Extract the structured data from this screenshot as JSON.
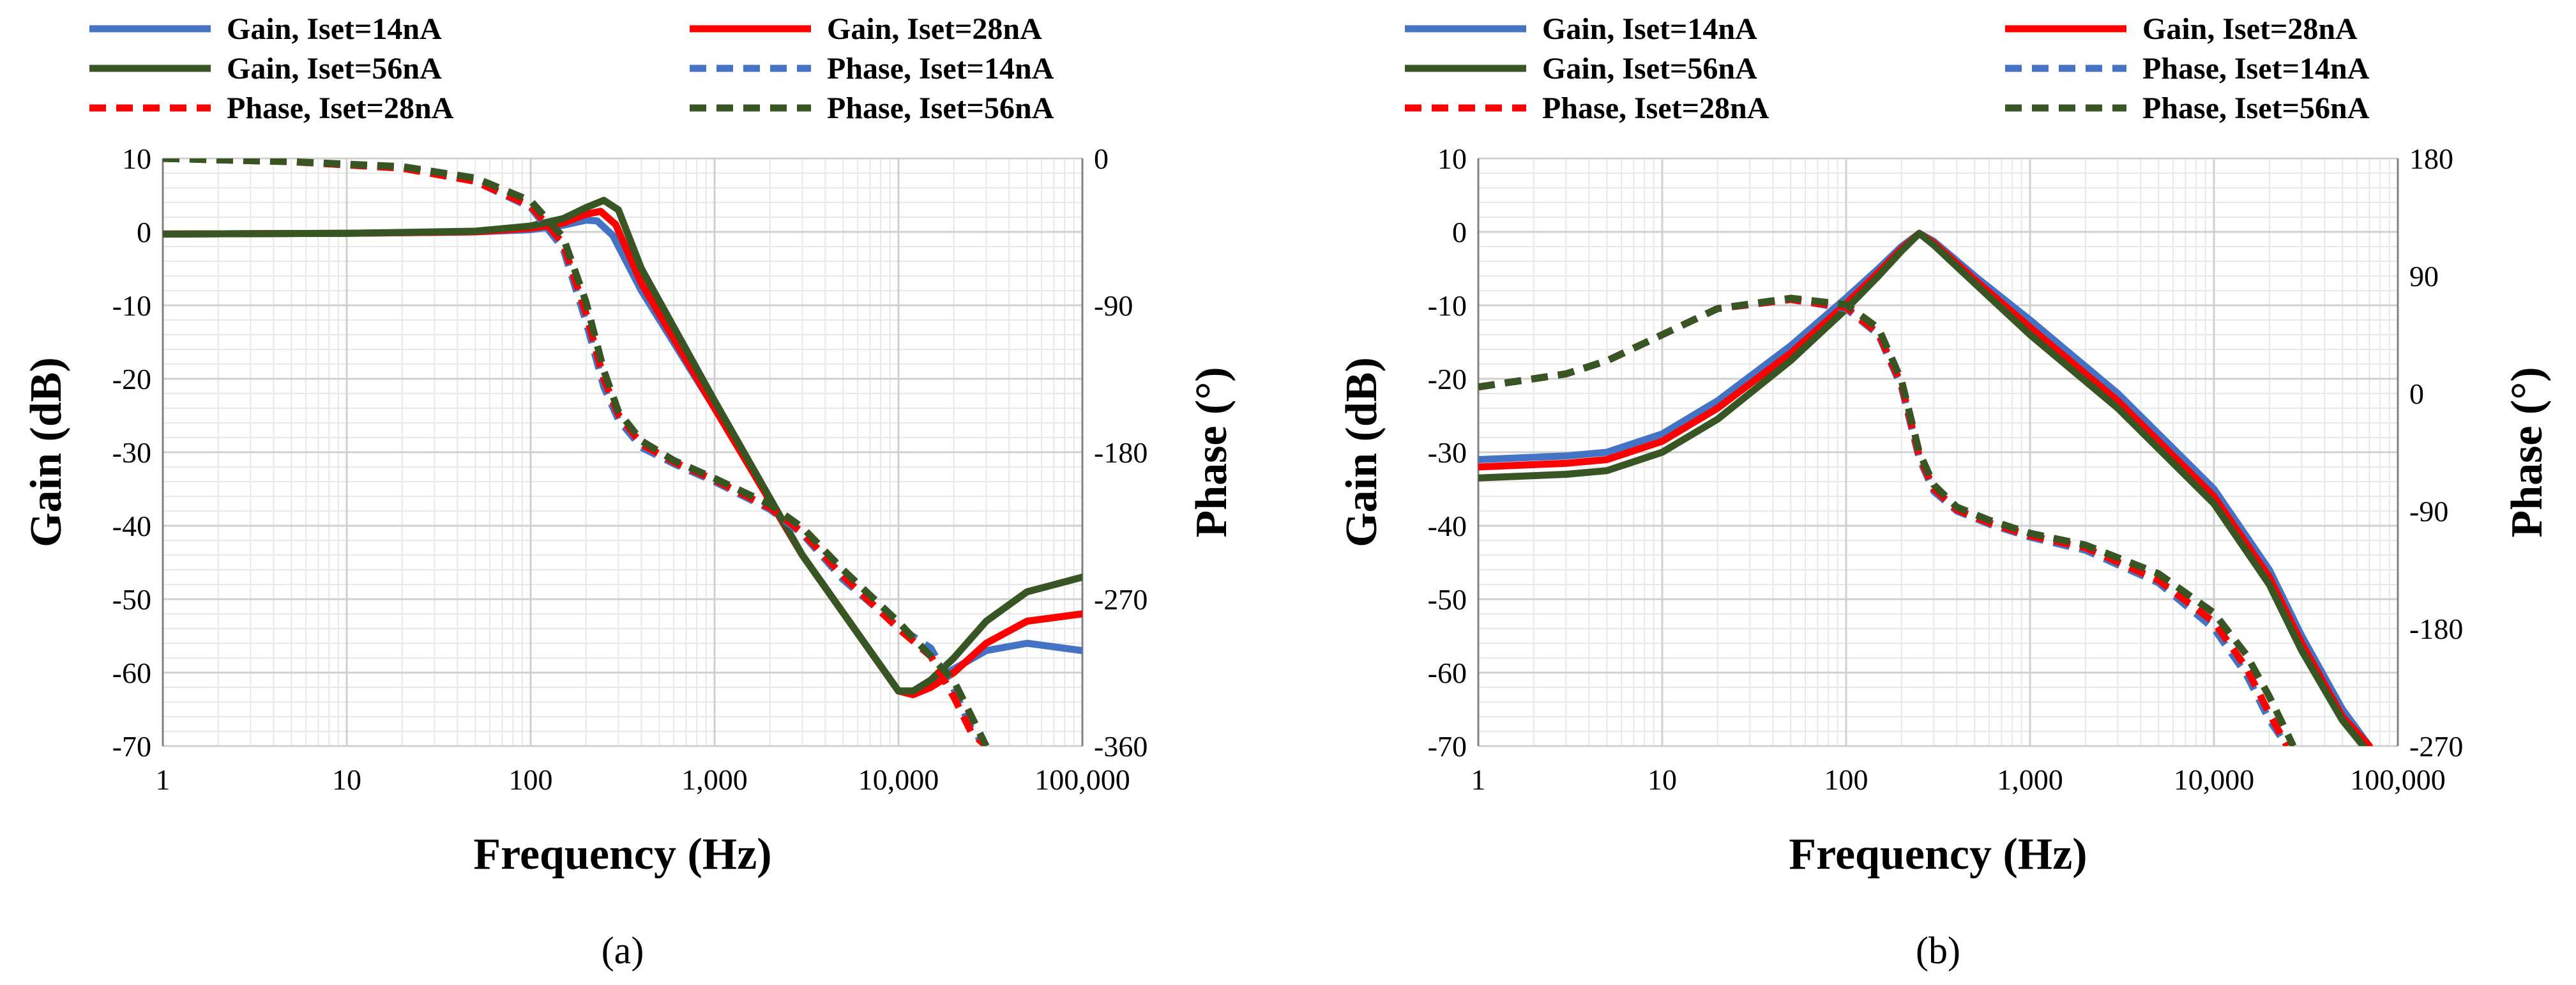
{
  "figure": {
    "caption_a": "(a)",
    "caption_b": "(b)"
  },
  "colors": {
    "blue": "#4472C4",
    "red": "#FF0000",
    "green": "#375623",
    "grid_major": "#D0D0D0",
    "grid_minor": "#E8E8E8"
  },
  "chart_data": [
    {
      "id": "a",
      "type": "line",
      "caption": "(a)",
      "xlabel": "Frequency (Hz)",
      "ylabel": "Gain (dB)",
      "y2label": "Phase (°)",
      "xscale": "log",
      "xlim": [
        1,
        100000
      ],
      "ylim": [
        -70,
        10
      ],
      "y2lim": [
        -360,
        0
      ],
      "xticks": [
        1,
        10,
        100,
        1000,
        10000,
        100000
      ],
      "xticklabels": [
        "1",
        "10",
        "100",
        "1,000",
        "10,000",
        "100,000"
      ],
      "yticks": [
        -70,
        -60,
        -50,
        -40,
        -30,
        -20,
        -10,
        0,
        10
      ],
      "yticklabels": [
        "-70",
        "-60",
        "-50",
        "-40",
        "-30",
        "-20",
        "-10",
        "0",
        "10"
      ],
      "y2ticks": [
        -360,
        -270,
        -180,
        -90,
        0
      ],
      "y2ticklabels": [
        "-360",
        "-270",
        "-180",
        "-90",
        "0"
      ],
      "legend_position": "top",
      "series": [
        {
          "name": "Gain, Iset=14nA",
          "axis": "left",
          "color": "#4472C4",
          "dash": "solid",
          "x": [
            1,
            10,
            50,
            100,
            150,
            200,
            230,
            280,
            400,
            1000,
            3000,
            10000,
            12000,
            15000,
            20000,
            30000,
            50000,
            100000
          ],
          "y": [
            -0.3,
            -0.2,
            0.0,
            0.3,
            0.9,
            1.6,
            1.5,
            -0.5,
            -8,
            -24,
            -44,
            -62.5,
            -62.5,
            -61.5,
            -59.5,
            -57,
            -56,
            -57
          ]
        },
        {
          "name": "Gain, Iset=28nA",
          "axis": "left",
          "color": "#FF0000",
          "dash": "solid",
          "x": [
            1,
            10,
            50,
            100,
            150,
            200,
            240,
            290,
            400,
            1000,
            3000,
            10000,
            12000,
            15000,
            20000,
            30000,
            50000,
            100000
          ],
          "y": [
            -0.3,
            -0.2,
            0.0,
            0.5,
            1.2,
            2.4,
            2.8,
            1.0,
            -7,
            -24,
            -44,
            -62.5,
            -63,
            -62,
            -60,
            -56,
            -53,
            -52
          ]
        },
        {
          "name": "Gain, Iset=56nA",
          "axis": "left",
          "color": "#375623",
          "dash": "solid",
          "x": [
            1,
            10,
            50,
            100,
            150,
            200,
            250,
            300,
            400,
            1000,
            3000,
            10000,
            12000,
            15000,
            20000,
            30000,
            50000,
            100000
          ],
          "y": [
            -0.3,
            -0.2,
            0.1,
            0.8,
            1.8,
            3.3,
            4.3,
            3.0,
            -5,
            -23,
            -44,
            -62.5,
            -62.5,
            -61,
            -58,
            -53,
            -49,
            -47
          ]
        },
        {
          "name": "Phase, Iset=14nA",
          "axis": "right",
          "color": "#4472C4",
          "dash": "dashed",
          "x": [
            1,
            5,
            20,
            50,
            100,
            150,
            200,
            250,
            300,
            400,
            600,
            1000,
            2000,
            3000,
            5000,
            10000,
            15000,
            20000,
            25000,
            30000
          ],
          "y": [
            0,
            -2,
            -6,
            -14,
            -30,
            -55,
            -100,
            -140,
            -160,
            -177,
            -187,
            -198,
            -215,
            -230,
            -258,
            -287,
            -300,
            -325,
            -350,
            -360
          ]
        },
        {
          "name": "Phase, Iset=28nA",
          "axis": "right",
          "color": "#FF0000",
          "dash": "dashed",
          "x": [
            1,
            5,
            20,
            50,
            100,
            150,
            200,
            250,
            300,
            400,
            600,
            1000,
            2000,
            3000,
            5000,
            10000,
            15000,
            20000,
            25000,
            30000
          ],
          "y": [
            0,
            -2,
            -6,
            -14,
            -29,
            -52,
            -95,
            -135,
            -157,
            -175,
            -186,
            -197,
            -214,
            -229,
            -256,
            -288,
            -305,
            -330,
            -352,
            -360
          ]
        },
        {
          "name": "Phase, Iset=56nA",
          "axis": "right",
          "color": "#375623",
          "dash": "dashed",
          "x": [
            1,
            5,
            20,
            50,
            100,
            150,
            200,
            250,
            300,
            400,
            600,
            1000,
            2000,
            3000,
            5000,
            10000,
            15000,
            20000,
            25000,
            30000
          ],
          "y": [
            0,
            -2,
            -5,
            -12,
            -26,
            -48,
            -88,
            -130,
            -155,
            -173,
            -185,
            -196,
            -212,
            -226,
            -252,
            -284,
            -305,
            -320,
            -342,
            -360
          ]
        }
      ]
    },
    {
      "id": "b",
      "type": "line",
      "caption": "(b)",
      "xlabel": "Frequency (Hz)",
      "ylabel": "Gain (dB)",
      "y2label": "Phase (°)",
      "xscale": "log",
      "xlim": [
        1,
        100000
      ],
      "ylim": [
        -70,
        10
      ],
      "y2lim": [
        -270,
        180
      ],
      "xticks": [
        1,
        10,
        100,
        1000,
        10000,
        100000
      ],
      "xticklabels": [
        "1",
        "10",
        "100",
        "1,000",
        "10,000",
        "100,000"
      ],
      "yticks": [
        -70,
        -60,
        -50,
        -40,
        -30,
        -20,
        -10,
        0,
        10
      ],
      "yticklabels": [
        "-70",
        "-60",
        "-50",
        "-40",
        "-30",
        "-20",
        "-10",
        "0",
        "10"
      ],
      "y2ticks": [
        -270,
        -180,
        -90,
        0,
        90,
        180
      ],
      "y2ticklabels": [
        "-270",
        "-180",
        "-90",
        "0",
        "90",
        "180"
      ],
      "legend_position": "top",
      "series": [
        {
          "name": "Gain, Iset=14nA",
          "axis": "left",
          "color": "#4472C4",
          "dash": "solid",
          "x": [
            1,
            3,
            5,
            10,
            20,
            50,
            100,
            150,
            200,
            250,
            300,
            500,
            1000,
            3000,
            10000,
            20000,
            30000,
            50000,
            70000
          ],
          "y": [
            -31,
            -30.5,
            -30,
            -27.5,
            -23,
            -15.5,
            -9,
            -5,
            -2,
            -0.2,
            -1.3,
            -6,
            -12,
            -22,
            -35,
            -46,
            -55,
            -65,
            -70
          ]
        },
        {
          "name": "Gain, Iset=28nA",
          "axis": "left",
          "color": "#FF0000",
          "dash": "solid",
          "x": [
            1,
            3,
            5,
            10,
            20,
            50,
            100,
            150,
            200,
            250,
            300,
            500,
            1000,
            3000,
            10000,
            20000,
            30000,
            50000,
            70000
          ],
          "y": [
            -32,
            -31.5,
            -31,
            -28.5,
            -24,
            -16.5,
            -9.8,
            -5.5,
            -2.3,
            -0.2,
            -1.5,
            -6.5,
            -13,
            -23,
            -36,
            -47,
            -56,
            -66,
            -70
          ]
        },
        {
          "name": "Gain, Iset=56nA",
          "axis": "left",
          "color": "#375623",
          "dash": "solid",
          "x": [
            1,
            3,
            5,
            10,
            20,
            50,
            100,
            150,
            200,
            250,
            300,
            500,
            1000,
            3000,
            10000,
            20000,
            30000,
            50000,
            70000
          ],
          "y": [
            -33.5,
            -33,
            -32.5,
            -30,
            -25.5,
            -17.5,
            -10.5,
            -6,
            -2.6,
            -0.2,
            -1.8,
            -7,
            -14,
            -24,
            -37,
            -48,
            -57,
            -66.5,
            -71
          ]
        },
        {
          "name": "Phase, Iset=14nA",
          "axis": "right",
          "color": "#4472C4",
          "dash": "dashed",
          "x": [
            1,
            3,
            5,
            10,
            20,
            50,
            100,
            150,
            200,
            250,
            300,
            400,
            600,
            1000,
            2000,
            5000,
            10000,
            15000,
            20000,
            25000
          ],
          "y": [
            5,
            15,
            25,
            45,
            65,
            72,
            65,
            45,
            5,
            -50,
            -75,
            -90,
            -100,
            -110,
            -120,
            -145,
            -180,
            -215,
            -250,
            -270
          ]
        },
        {
          "name": "Phase, Iset=28nA",
          "axis": "right",
          "color": "#FF0000",
          "dash": "dashed",
          "x": [
            1,
            3,
            5,
            10,
            20,
            50,
            100,
            150,
            200,
            250,
            300,
            400,
            600,
            1000,
            2000,
            5000,
            10000,
            15000,
            20000,
            25000
          ],
          "y": [
            5,
            15,
            25,
            45,
            65,
            72,
            66,
            46,
            7,
            -48,
            -73,
            -89,
            -99,
            -109,
            -118,
            -143,
            -175,
            -210,
            -245,
            -270
          ]
        },
        {
          "name": "Phase, Iset=56nA",
          "axis": "right",
          "color": "#375623",
          "dash": "dashed",
          "x": [
            1,
            3,
            5,
            10,
            20,
            50,
            100,
            150,
            200,
            250,
            300,
            400,
            600,
            1000,
            2000,
            5000,
            10000,
            15000,
            20000,
            25000,
            27000
          ],
          "y": [
            5,
            15,
            25,
            45,
            65,
            73,
            68,
            50,
            10,
            -45,
            -70,
            -87,
            -97,
            -107,
            -116,
            -138,
            -168,
            -200,
            -232,
            -260,
            -270
          ]
        }
      ]
    }
  ]
}
